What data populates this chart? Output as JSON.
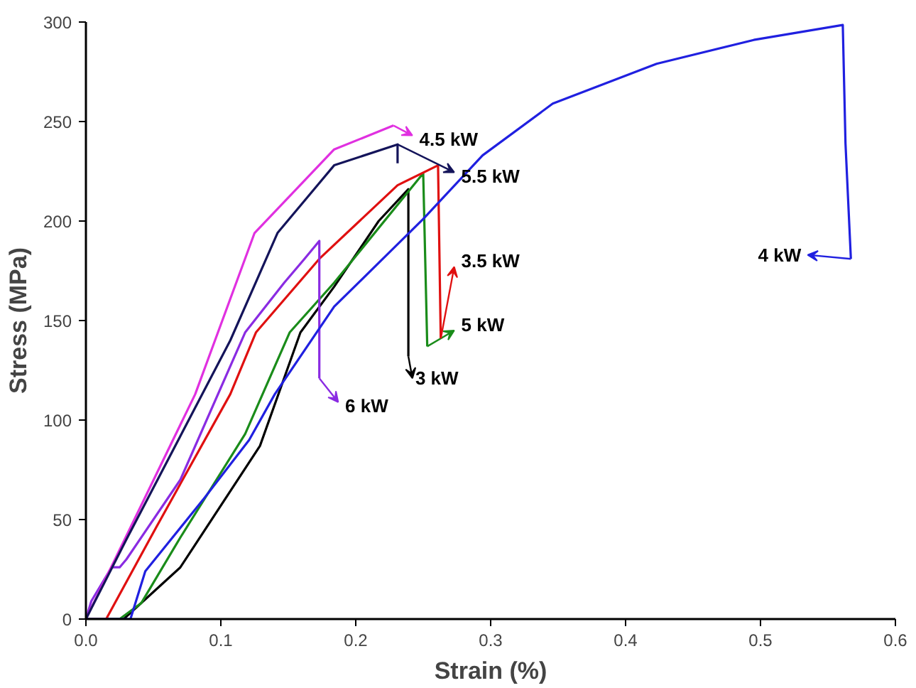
{
  "chart_data": {
    "type": "line",
    "xlabel": "Strain (%)",
    "ylabel": "Stress (MPa)",
    "xlim": [
      0,
      0.6
    ],
    "ylim": [
      0,
      300
    ],
    "xticks": [
      {
        "value": 0,
        "label": "0.0"
      },
      0.1,
      0.2,
      0.3,
      0.4,
      0.5,
      0.6
    ],
    "yticks": [
      0,
      50,
      100,
      150,
      200,
      250,
      300
    ],
    "grid": false,
    "legend": "top left",
    "marker": "none",
    "line_style": "solid",
    "series": [
      {
        "name": "3 kW",
        "color": "#000000",
        "x": [
          0,
          0.028,
          0.07,
          0.129,
          0.159,
          0.184,
          0.217,
          0.239,
          0.239
        ],
        "values": [
          0,
          0,
          26,
          87,
          144,
          167,
          200,
          216,
          132
        ]
      },
      {
        "name": "5 kW",
        "color": "#1a8c1a",
        "x": [
          0,
          0.025,
          0.041,
          0.07,
          0.118,
          0.151,
          0.184,
          0.25,
          0.253
        ],
        "values": [
          0,
          0,
          8,
          41,
          93,
          144,
          169,
          224,
          137
        ]
      },
      {
        "name": "3.5 kW",
        "color": "#e01010",
        "x": [
          0,
          0.015,
          0.052,
          0.107,
          0.126,
          0.173,
          0.231,
          0.261,
          0.263
        ],
        "values": [
          0,
          0,
          46,
          113,
          144,
          181,
          218,
          228,
          141
        ]
      },
      {
        "name": "6 kW",
        "color": "#8a2be2",
        "x": [
          0,
          0.004,
          0.019,
          0.025,
          0.03,
          0.07,
          0.118,
          0.147,
          0.162,
          0.173,
          0.173
        ],
        "values": [
          0,
          9,
          26,
          26,
          30,
          70,
          144,
          169,
          181,
          190,
          121
        ]
      },
      {
        "name": "4.5 kW",
        "color": "#e030e0",
        "x": [
          0,
          0.033,
          0.081,
          0.125,
          0.184,
          0.228
        ],
        "values": [
          0,
          46,
          113,
          194,
          236,
          248
        ]
      },
      {
        "name": "5.5 kW",
        "color": "#14145a",
        "x": [
          0,
          0.03,
          0.107,
          0.142,
          0.184,
          0.231,
          0.231
        ],
        "values": [
          0,
          40,
          140,
          194,
          228,
          238.5,
          229
        ]
      },
      {
        "name": "4 kW",
        "color": "#2020e0",
        "x": [
          0,
          0.033,
          0.044,
          0.088,
          0.121,
          0.14,
          0.184,
          0.25,
          0.294,
          0.346,
          0.423,
          0.495,
          0.561,
          0.563,
          0.567
        ],
        "values": [
          0,
          0,
          24,
          61,
          90,
          113,
          157,
          201,
          233,
          259,
          279,
          291,
          298.5,
          239,
          181
        ]
      }
    ]
  }
}
